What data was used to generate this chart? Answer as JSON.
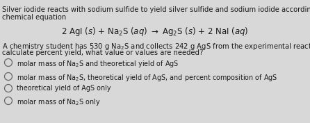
{
  "background_color": "#d8d8d8",
  "text_color": "#1a1a1a",
  "intro_line1": "Silver iodide reacts with sodium sulfide to yield silver sulfide and sodium iodide according to the balanced",
  "intro_line2": "chemical equation",
  "equation": "2 AgI $(s)$ + Na$_2$S $(aq)$ $\\rightarrow$ Ag$_2$S $(s)$ + 2 NaI $(aq)$",
  "body_line1": "A chemistry student has 530 g Na$_2$S and collects 242 g AgS from the experimental reaction. In order to",
  "body_line2": "calculate percent yield, what value or values are needed?",
  "options": [
    "molar mass of Na$_2$S and theoretical yield of AgS",
    "molar mass of Na$_2$S, theoretical yield of AgS, and percent composition of AgS",
    "theoretical yield of AgS only",
    "molar mass of Na$_2$S only"
  ],
  "font_size_body": 7.2,
  "font_size_equation": 8.5,
  "fig_width": 4.46,
  "fig_height": 1.77,
  "dpi": 100
}
